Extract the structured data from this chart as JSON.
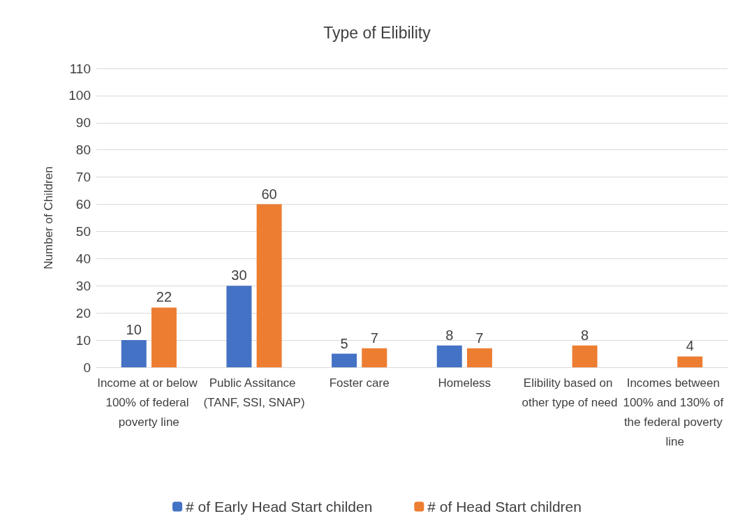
{
  "chart_data": {
    "type": "bar",
    "title": "Type of Elibility",
    "ylabel": "Number of Children",
    "categories": [
      "Income at or below 100% of federal poverty line",
      "Public Assitance (TANF, SSI, SNAP)",
      "Foster care",
      "Homeless",
      "Elibility based on other type of need",
      "Incomes between 100% and 130% of the federal poverty line"
    ],
    "series": [
      {
        "name": "# of Early Head Start childen",
        "color": "#4472c4",
        "values": [
          10,
          30,
          5,
          8,
          null,
          null
        ]
      },
      {
        "name": "# of Head Start children",
        "color": "#ed7d31",
        "values": [
          22,
          60,
          7,
          7,
          8,
          4
        ]
      }
    ],
    "ylim": [
      0,
      110
    ],
    "yticks": [
      0,
      10,
      20,
      30,
      40,
      50,
      60,
      70,
      80,
      90,
      100,
      110
    ],
    "grid": "y",
    "legend": "bottom",
    "data_labels": true
  }
}
